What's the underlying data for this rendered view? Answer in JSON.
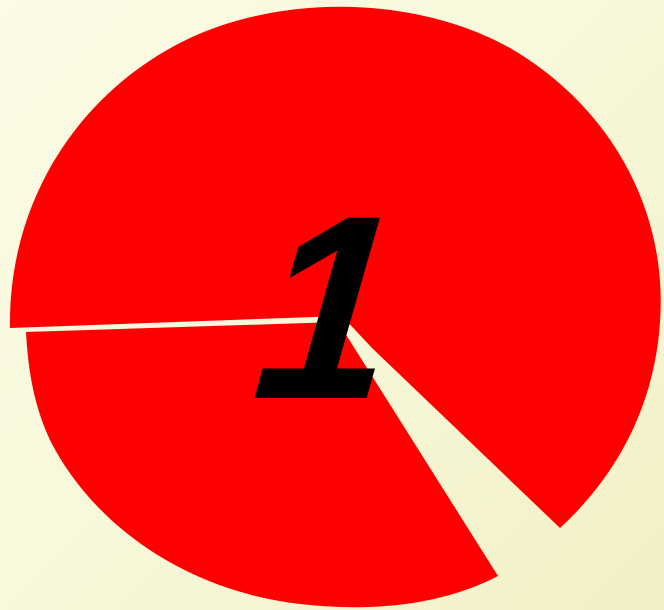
{
  "numeral": "1",
  "colors": {
    "segment_fill": "#ff0000",
    "numeral": "#000000",
    "background": "#f7f7d8"
  },
  "shape": {
    "type": "exploded circle",
    "segments": 3
  }
}
